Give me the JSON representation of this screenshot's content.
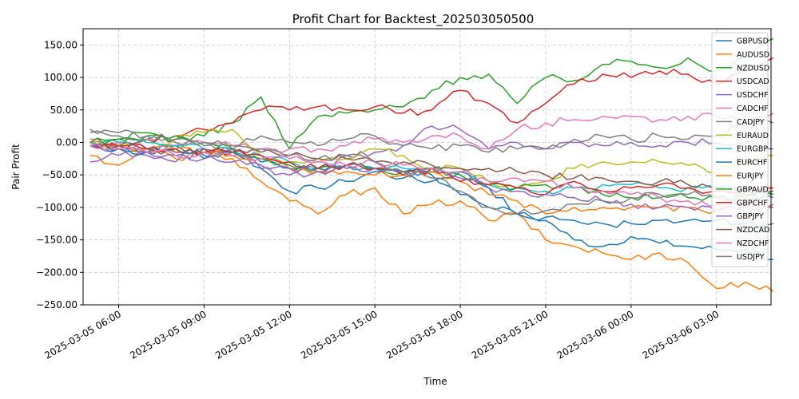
{
  "chart_data": {
    "type": "line",
    "title": "Profit Chart for Backtest_202503050500",
    "xlabel": "Time",
    "ylabel": "Pair Profit",
    "ylim": [
      -250,
      175
    ],
    "y_ticks": [
      -250,
      -200,
      -150,
      -100,
      -50,
      0,
      50,
      100,
      150
    ],
    "y_tick_labels": [
      "−250.00",
      "−200.00",
      "−150.00",
      "−100.00",
      "−50.00",
      "0.00",
      "50.00",
      "100.00",
      "150.00"
    ],
    "x_range": [
      "2025-03-05 04:45",
      "2025-03-06 04:55"
    ],
    "x_ticks": [
      "2025-03-05 06:00",
      "2025-03-05 09:00",
      "2025-03-05 12:00",
      "2025-03-05 15:00",
      "2025-03-05 18:00",
      "2025-03-05 21:00",
      "2025-03-06 00:00",
      "2025-03-06 03:00"
    ],
    "x_tick_labels": [
      "2025-03-05 06:00",
      "2025-03-05 09:00",
      "2025-03-05 12:00",
      "2025-03-05 15:00",
      "2025-03-05 18:00",
      "2025-03-05 21:00",
      "2025-03-06 00:00",
      "2025-03-06 03:00"
    ],
    "grid": true,
    "legend_position": "upper-right",
    "x_hours": [
      0,
      1,
      2,
      3,
      4,
      5,
      6,
      7,
      8,
      9,
      10,
      11,
      12,
      13,
      14,
      15,
      16,
      17,
      18,
      19,
      20,
      21,
      22,
      23,
      24
    ],
    "series": [
      {
        "name": "GBPUSD",
        "color": "#1f77b4",
        "values": [
          0,
          -10,
          -15,
          -5,
          -25,
          -10,
          -40,
          -75,
          -70,
          -60,
          -45,
          -55,
          -60,
          -45,
          -70,
          -110,
          -120,
          -150,
          -160,
          -145,
          -155,
          -160,
          -165,
          -165,
          -180
        ]
      },
      {
        "name": "AUDUSD",
        "color": "#ff7f0e",
        "values": [
          -20,
          -35,
          -10,
          -25,
          -15,
          -25,
          -60,
          -90,
          -110,
          -80,
          -70,
          -110,
          -95,
          -90,
          -120,
          -110,
          -150,
          -160,
          -170,
          -180,
          -170,
          -185,
          -225,
          -215,
          -230
        ]
      },
      {
        "name": "NZDUSD",
        "color": "#2ca02c",
        "values": [
          0,
          5,
          10,
          5,
          10,
          30,
          70,
          -10,
          40,
          45,
          50,
          55,
          80,
          100,
          105,
          60,
          100,
          95,
          120,
          125,
          115,
          130,
          110,
          130,
          160
        ]
      },
      {
        "name": "USDCAD",
        "color": "#d62728",
        "values": [
          0,
          -5,
          5,
          10,
          20,
          30,
          50,
          50,
          55,
          50,
          55,
          45,
          50,
          80,
          60,
          30,
          60,
          90,
          105,
          100,
          110,
          105,
          90,
          110,
          130
        ]
      },
      {
        "name": "USDCHF",
        "color": "#9467bd",
        "values": [
          -30,
          -20,
          -20,
          -30,
          -10,
          -10,
          -40,
          -50,
          -45,
          -20,
          -15,
          -5,
          25,
          20,
          -10,
          0,
          -10,
          0,
          -5,
          0,
          -5,
          0,
          0,
          0,
          -10
        ]
      },
      {
        "name": "CADCHF",
        "color": "#e377c2",
        "values": [
          5,
          0,
          -10,
          -5,
          0,
          -5,
          -10,
          -10,
          -10,
          -5,
          5,
          0,
          10,
          10,
          -10,
          20,
          30,
          35,
          40,
          40,
          35,
          40,
          40,
          40,
          45
        ]
      },
      {
        "name": "CADJPY",
        "color": "#7f7f7f",
        "values": [
          15,
          10,
          5,
          0,
          -5,
          -10,
          10,
          0,
          -5,
          5,
          10,
          -5,
          -10,
          -5,
          -15,
          -10,
          -10,
          5,
          10,
          5,
          10,
          5,
          10,
          25,
          30
        ]
      },
      {
        "name": "EURAUD",
        "color": "#bcbd22",
        "values": [
          0,
          -5,
          -10,
          5,
          15,
          20,
          -20,
          -30,
          -30,
          -25,
          -10,
          -20,
          -40,
          -40,
          -60,
          -70,
          -60,
          -40,
          -30,
          -30,
          -30,
          -35,
          -45,
          -30,
          -20
        ]
      },
      {
        "name": "EURGBP",
        "color": "#17becf",
        "values": [
          0,
          0,
          0,
          -5,
          -10,
          -15,
          -20,
          -30,
          -40,
          -35,
          -40,
          -40,
          -45,
          -50,
          -65,
          -70,
          -75,
          -70,
          -65,
          -65,
          -70,
          -70,
          -70,
          -75,
          -80
        ]
      },
      {
        "name": "EURCHF",
        "color": "#1f77b4",
        "values": [
          -5,
          -10,
          -15,
          -10,
          -20,
          -15,
          -30,
          -40,
          -40,
          -35,
          -40,
          -45,
          -50,
          -80,
          -100,
          -110,
          -115,
          -120,
          -125,
          -125,
          -120,
          -120,
          -120,
          -125,
          -125
        ]
      },
      {
        "name": "EURJPY",
        "color": "#ff7f0e",
        "values": [
          0,
          -5,
          -10,
          -10,
          -15,
          -20,
          -25,
          -40,
          -45,
          -45,
          -50,
          -50,
          -45,
          -60,
          -80,
          -90,
          -110,
          -100,
          -100,
          -100,
          -100,
          -100,
          -105,
          -95,
          -95
        ]
      },
      {
        "name": "GBPAUD",
        "color": "#2ca02c",
        "values": [
          0,
          5,
          15,
          10,
          0,
          -10,
          -25,
          -35,
          -40,
          -35,
          -40,
          -45,
          -40,
          -50,
          -65,
          -70,
          -65,
          -70,
          -80,
          -85,
          -85,
          -85,
          -85,
          -85,
          -80
        ]
      },
      {
        "name": "GBPCHF",
        "color": "#d62728",
        "values": [
          -5,
          -5,
          -10,
          -10,
          -15,
          -15,
          -20,
          -30,
          -40,
          -35,
          -40,
          -50,
          -40,
          -60,
          -65,
          -70,
          -80,
          -60,
          -75,
          -70,
          -65,
          -70,
          -75,
          -80,
          -70
        ]
      },
      {
        "name": "GBPJPY",
        "color": "#9467bd",
        "values": [
          -5,
          -10,
          -15,
          -20,
          -25,
          -30,
          -35,
          -40,
          -45,
          -40,
          -40,
          -45,
          -40,
          -55,
          -70,
          -75,
          -80,
          -85,
          -90,
          -95,
          -100,
          -100,
          -105,
          -100,
          -100
        ]
      },
      {
        "name": "NZDCAD",
        "color": "#8c564b",
        "values": [
          -5,
          -5,
          -10,
          -15,
          -10,
          -15,
          -15,
          -20,
          -25,
          -25,
          -30,
          -30,
          -35,
          -40,
          -40,
          -45,
          -50,
          -55,
          -55,
          -60,
          -60,
          -65,
          -70,
          -70,
          -75
        ]
      },
      {
        "name": "NZDCHF",
        "color": "#e377c2",
        "values": [
          -5,
          -10,
          -15,
          -20,
          -15,
          -20,
          -25,
          -25,
          -30,
          -35,
          -30,
          -35,
          -40,
          -45,
          -60,
          -55,
          -60,
          -70,
          -75,
          -80,
          -85,
          -90,
          -95,
          -100,
          -95
        ]
      },
      {
        "name": "USDJPY",
        "color": "#7f7f7f",
        "values": [
          20,
          15,
          10,
          5,
          0,
          -5,
          -10,
          -20,
          -25,
          -20,
          -30,
          -45,
          -55,
          -75,
          -100,
          -110,
          -105,
          -95,
          -90,
          -85,
          -80,
          -80,
          -85,
          -90,
          -85
        ]
      }
    ]
  }
}
